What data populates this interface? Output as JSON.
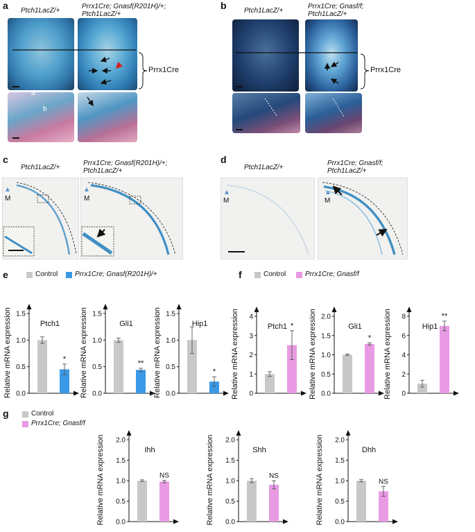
{
  "panels": {
    "a": {
      "label": "a",
      "control_genotype": "Ptch1LacZ/+",
      "mutant_genotype_line1": "Prrx1Cre; Gnasf(R201H)/+;",
      "mutant_genotype_line2": "Ptch1LacZ/+",
      "bracket_label": "Prrx1Cre",
      "annot_a": "a",
      "annot_b": "b"
    },
    "b": {
      "label": "b",
      "control_genotype": "Ptch1LacZ/+",
      "mutant_genotype_line1": "Prrx1Cre; Gnasf/f;",
      "mutant_genotype_line2": "Ptch1LacZ/+",
      "bracket_label": "Prrx1Cre"
    },
    "c": {
      "label": "c",
      "control_genotype": "Ptch1LacZ/+",
      "mutant_genotype_line1": "Prrx1Cre; Gnasf(R201H)/+;",
      "mutant_genotype_line2": "Ptch1LacZ/+",
      "marker": "M"
    },
    "d": {
      "label": "d",
      "control_genotype": "Ptch1LacZ/+",
      "mutant_genotype_line1": "Prrx1Cre; Gnasf/f;",
      "mutant_genotype_line2": "Ptch1LacZ/+",
      "marker": "M"
    },
    "e": {
      "label": "e",
      "legend_control": "Control",
      "legend_mutant": "Prrx1Cre; Gnasf(R201H)/+"
    },
    "f": {
      "label": "f",
      "legend_control": "Control",
      "legend_mutant": "Prrx1Cre; Gnasf/f"
    },
    "g": {
      "label": "g",
      "legend_control": "Control",
      "legend_mutant": "Prrx1Cre; Gnasf/f"
    }
  },
  "colors": {
    "control": "#c8c8c8",
    "mutant_e": "#3a98e6",
    "mutant_fg": "#e89be2",
    "lacz_blue": "#3f8fc4",
    "marker_blue": "#5b8fd0",
    "red_arrow": "#d62020"
  },
  "chart_data": [
    {
      "id": "e-ptch1",
      "type": "bar",
      "title": "Ptch1",
      "ylabel": "Relative mRNA expression",
      "ylim": [
        0,
        1.5
      ],
      "yticks": [
        "0.0",
        "0.5",
        "1.0",
        "1.5"
      ],
      "categories": [
        "Control",
        "Prrx1Cre; Gnasf(R201H)/+"
      ],
      "values": [
        1.0,
        0.45
      ],
      "errors": [
        0.06,
        0.1
      ],
      "significance": [
        "",
        "*"
      ]
    },
    {
      "id": "e-gli1",
      "type": "bar",
      "title": "Gli1",
      "ylabel": "Relative mRNA expression",
      "ylim": [
        0,
        1.5
      ],
      "yticks": [
        "0.0",
        "0.5",
        "1.0",
        "1.5"
      ],
      "categories": [
        "Control",
        "Prrx1Cre; Gnasf(R201H)/+"
      ],
      "values": [
        1.0,
        0.44
      ],
      "errors": [
        0.04,
        0.03
      ],
      "significance": [
        "",
        "**"
      ]
    },
    {
      "id": "e-hip1",
      "type": "bar",
      "title": "Hip1",
      "ylabel": "Relative mRNA expression",
      "ylim": [
        0,
        1.5
      ],
      "yticks": [
        "0.0",
        "0.5",
        "1.0",
        "1.5"
      ],
      "categories": [
        "Control",
        "Prrx1Cre; Gnasf(R201H)/+"
      ],
      "values": [
        1.0,
        0.22
      ],
      "errors": [
        0.25,
        0.09
      ],
      "significance": [
        "",
        "*"
      ]
    },
    {
      "id": "f-ptch1",
      "type": "bar",
      "title": "Ptch1",
      "ylabel": "Relative mRNA expression",
      "ylim": [
        0,
        4
      ],
      "yticks": [
        "0",
        "1",
        "2",
        "3",
        "4"
      ],
      "categories": [
        "Control",
        "Prrx1Cre; Gnasf/f"
      ],
      "values": [
        1.0,
        2.5
      ],
      "errors": [
        0.12,
        0.75
      ],
      "significance": [
        "",
        "*"
      ]
    },
    {
      "id": "f-gli1",
      "type": "bar",
      "title": "Gli1",
      "ylabel": "Relative mRNA expression",
      "ylim": [
        0,
        2.0
      ],
      "yticks": [
        "0.0",
        "0.5",
        "1.0",
        "1.5",
        "2.0"
      ],
      "categories": [
        "Control",
        "Prrx1Cre; Gnasf/f"
      ],
      "values": [
        1.0,
        1.28
      ],
      "errors": [
        0.02,
        0.03
      ],
      "significance": [
        "",
        "*"
      ]
    },
    {
      "id": "f-hip1",
      "type": "bar",
      "title": "Hip1",
      "ylabel": "Relative mRNA expression",
      "ylim": [
        0,
        8
      ],
      "yticks": [
        "0",
        "2",
        "4",
        "6",
        "8"
      ],
      "categories": [
        "Control",
        "Prrx1Cre; Gnasf/f"
      ],
      "values": [
        1.0,
        7.0
      ],
      "errors": [
        0.35,
        0.5
      ],
      "significance": [
        "",
        "**"
      ]
    },
    {
      "id": "g-ihh",
      "type": "bar",
      "title": "Ihh",
      "ylabel": "Relative mRNA expression",
      "ylim": [
        0,
        2.0
      ],
      "yticks": [
        "0.0",
        "0.5",
        "1.0",
        "1.5",
        "2.0"
      ],
      "categories": [
        "Control",
        "Prrx1Cre; Gnasf/f"
      ],
      "values": [
        1.0,
        0.98
      ],
      "errors": [
        0.02,
        0.03
      ],
      "significance": [
        "",
        "NS"
      ]
    },
    {
      "id": "g-shh",
      "type": "bar",
      "title": "Shh",
      "ylabel": "Relative mRNA expression",
      "ylim": [
        0,
        2.0
      ],
      "yticks": [
        "0.0",
        "0.5",
        "1.0",
        "1.5",
        "2.0"
      ],
      "categories": [
        "Control",
        "Prrx1Cre; Gnasf/f"
      ],
      "values": [
        1.0,
        0.9
      ],
      "errors": [
        0.05,
        0.1
      ],
      "significance": [
        "",
        "NS"
      ]
    },
    {
      "id": "g-dhh",
      "type": "bar",
      "title": "Dhh",
      "ylabel": "Relative mRNA expression",
      "ylim": [
        0,
        2.0
      ],
      "yticks": [
        "0.0",
        "0.5",
        "1.0",
        "1.5",
        "2.0"
      ],
      "categories": [
        "Control",
        "Prrx1Cre; Gnasf/f"
      ],
      "values": [
        1.0,
        0.74
      ],
      "errors": [
        0.03,
        0.12
      ],
      "significance": [
        "",
        "NS"
      ]
    }
  ]
}
